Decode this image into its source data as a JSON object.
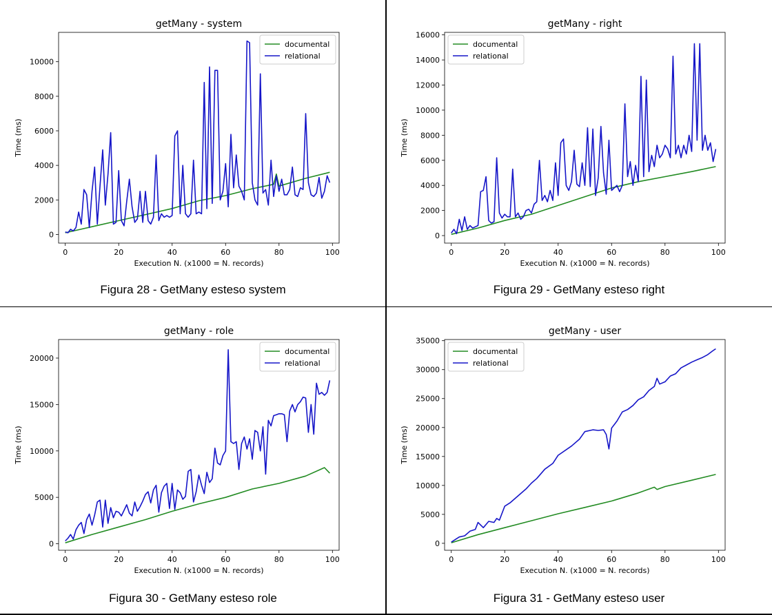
{
  "captions": {
    "p0": "Figura 28 - GetMany esteso system",
    "p1": "Figura 29 - GetMany esteso right",
    "p2": "Figura 30 - GetMany esteso role",
    "p3": "Figura 31 - GetMany esteso user"
  },
  "colors": {
    "documental": "#228b22",
    "relational": "#1515c8"
  },
  "chart_data": [
    {
      "type": "line",
      "title": "getMany - system",
      "xlabel": "Execution N. (x1000 = N. records)",
      "ylabel": "Time (ms)",
      "xlim": [
        -2.5,
        102.5
      ],
      "ylim": [
        -500,
        11700
      ],
      "xticks": [
        0,
        20,
        40,
        60,
        80,
        100
      ],
      "yticks": [
        0,
        2000,
        4000,
        6000,
        8000,
        10000
      ],
      "legend_position": "top-right",
      "series": [
        {
          "name": "documental",
          "key": "documental",
          "x": [
            0,
            10,
            20,
            30,
            40,
            50,
            60,
            70,
            78,
            79,
            80,
            90,
            99
          ],
          "values": [
            100,
            450,
            800,
            1150,
            1500,
            1950,
            2250,
            2650,
            2900,
            3500,
            2800,
            3250,
            3600
          ]
        },
        {
          "name": "relational",
          "key": "relational",
          "x": [
            0,
            1,
            2,
            3,
            4,
            5,
            6,
            7,
            8,
            9,
            10,
            11,
            12,
            13,
            14,
            15,
            16,
            17,
            18,
            19,
            20,
            21,
            22,
            23,
            24,
            25,
            26,
            27,
            28,
            29,
            30,
            31,
            32,
            33,
            34,
            35,
            36,
            37,
            38,
            39,
            40,
            41,
            42,
            43,
            44,
            45,
            46,
            47,
            48,
            49,
            50,
            51,
            52,
            53,
            54,
            55,
            56,
            57,
            58,
            59,
            60,
            61,
            62,
            63,
            64,
            65,
            66,
            67,
            68,
            69,
            70,
            71,
            72,
            73,
            74,
            75,
            76,
            77,
            78,
            79,
            80,
            81,
            82,
            83,
            84,
            85,
            86,
            87,
            88,
            89,
            90,
            91,
            92,
            93,
            94,
            95,
            96,
            97,
            98,
            99
          ],
          "values": [
            150,
            100,
            300,
            200,
            400,
            1300,
            600,
            2600,
            2300,
            400,
            2500,
            3900,
            600,
            2800,
            4900,
            1700,
            3500,
            5900,
            600,
            700,
            3700,
            800,
            500,
            1900,
            3200,
            1600,
            700,
            900,
            2500,
            700,
            2500,
            800,
            600,
            1000,
            4600,
            800,
            1200,
            1000,
            1100,
            1000,
            1100,
            5700,
            6000,
            1200,
            4000,
            1200,
            1000,
            1200,
            4300,
            1200,
            1300,
            1200,
            8800,
            1500,
            9700,
            1800,
            9500,
            9500,
            2000,
            2500,
            4100,
            1600,
            5800,
            2700,
            4600,
            2800,
            2500,
            2000,
            11200,
            11100,
            3000,
            2000,
            1700,
            9300,
            2400,
            2600,
            1700,
            4300,
            2200,
            3400,
            2500,
            3200,
            2300,
            2300,
            2600,
            3900,
            2300,
            2200,
            2700,
            2600,
            7000,
            3000,
            2300,
            2200,
            2400,
            3300,
            2100,
            2500,
            3400,
            3000
          ]
        }
      ]
    },
    {
      "type": "line",
      "title": "getMany - right",
      "xlabel": "Execution N. (x1000 = N. records)",
      "ylabel": "Time (ms)",
      "xlim": [
        -2.5,
        102.5
      ],
      "ylim": [
        -600,
        16200
      ],
      "xticks": [
        0,
        20,
        40,
        60,
        80,
        100
      ],
      "yticks": [
        0,
        2000,
        4000,
        6000,
        8000,
        10000,
        12000,
        14000,
        16000
      ],
      "legend_position": "top-left",
      "series": [
        {
          "name": "documental",
          "key": "documental",
          "x": [
            0,
            10,
            20,
            30,
            40,
            50,
            60,
            70,
            80,
            90,
            99
          ],
          "values": [
            100,
            600,
            1200,
            1700,
            2400,
            3100,
            3800,
            4300,
            4700,
            5100,
            5500
          ]
        },
        {
          "name": "relational",
          "key": "relational",
          "x": [
            0,
            1,
            2,
            3,
            4,
            5,
            6,
            7,
            8,
            9,
            10,
            11,
            12,
            13,
            14,
            15,
            16,
            17,
            18,
            19,
            20,
            21,
            22,
            23,
            24,
            25,
            26,
            27,
            28,
            29,
            30,
            31,
            32,
            33,
            34,
            35,
            36,
            37,
            38,
            39,
            40,
            41,
            42,
            43,
            44,
            45,
            46,
            47,
            48,
            49,
            50,
            51,
            52,
            53,
            54,
            55,
            56,
            57,
            58,
            59,
            60,
            61,
            62,
            63,
            64,
            65,
            66,
            67,
            68,
            69,
            70,
            71,
            72,
            73,
            74,
            75,
            76,
            77,
            78,
            79,
            80,
            81,
            82,
            83,
            84,
            85,
            86,
            87,
            88,
            89,
            90,
            91,
            92,
            93,
            94,
            95,
            96,
            97,
            98,
            99
          ],
          "values": [
            200,
            500,
            150,
            1300,
            400,
            1500,
            500,
            800,
            600,
            700,
            800,
            3500,
            3600,
            4700,
            1200,
            1000,
            1100,
            6200,
            1800,
            1400,
            1700,
            1500,
            1500,
            5300,
            1500,
            1800,
            1300,
            1500,
            2000,
            2100,
            1800,
            2500,
            2700,
            6000,
            2800,
            3200,
            2700,
            3600,
            2800,
            5800,
            3200,
            7400,
            7700,
            4000,
            3600,
            4300,
            6800,
            4100,
            3900,
            5800,
            4000,
            8600,
            3900,
            8500,
            3200,
            4600,
            8700,
            5000,
            3300,
            7600,
            3600,
            3800,
            4000,
            3500,
            4000,
            10500,
            4700,
            5900,
            4000,
            5600,
            4300,
            12700,
            4700,
            12400,
            5100,
            6400,
            5500,
            7200,
            6200,
            6500,
            7200,
            6900,
            6200,
            14300,
            6500,
            7200,
            6200,
            7200,
            6500,
            8000,
            6700,
            15300,
            7600,
            15300,
            6800,
            8000,
            6800,
            7400,
            5900,
            6900
          ]
        }
      ]
    },
    {
      "type": "line",
      "title": "getMany - role",
      "xlabel": "Execution N. (x1000 = N. records)",
      "ylabel": "Time (ms)",
      "xlim": [
        -2.5,
        102.5
      ],
      "ylim": [
        -700,
        22000
      ],
      "xticks": [
        0,
        20,
        40,
        60,
        80,
        100
      ],
      "yticks": [
        0,
        5000,
        10000,
        15000,
        20000
      ],
      "legend_position": "top-right",
      "series": [
        {
          "name": "documental",
          "key": "documental",
          "x": [
            0,
            10,
            20,
            30,
            40,
            50,
            60,
            70,
            80,
            90,
            97,
            99
          ],
          "values": [
            100,
            1000,
            1800,
            2600,
            3500,
            4300,
            5000,
            5900,
            6500,
            7300,
            8200,
            7600
          ]
        },
        {
          "name": "relational",
          "key": "relational",
          "x": [
            0,
            1,
            2,
            3,
            4,
            5,
            6,
            7,
            8,
            9,
            10,
            11,
            12,
            13,
            14,
            15,
            16,
            17,
            18,
            19,
            20,
            21,
            22,
            23,
            24,
            25,
            26,
            27,
            28,
            29,
            30,
            31,
            32,
            33,
            34,
            35,
            36,
            37,
            38,
            39,
            40,
            41,
            42,
            43,
            44,
            45,
            46,
            47,
            48,
            49,
            50,
            51,
            52,
            53,
            54,
            55,
            56,
            57,
            58,
            59,
            60,
            61,
            62,
            63,
            64,
            65,
            66,
            67,
            68,
            69,
            70,
            71,
            72,
            73,
            74,
            75,
            76,
            77,
            78,
            79,
            80,
            81,
            82,
            83,
            84,
            85,
            86,
            87,
            88,
            89,
            90,
            91,
            92,
            93,
            94,
            95,
            96,
            97,
            98,
            99
          ],
          "values": [
            300,
            600,
            1000,
            500,
            1500,
            2000,
            2300,
            1100,
            2600,
            3200,
            2000,
            3100,
            4500,
            4700,
            1800,
            4700,
            2200,
            3900,
            2800,
            3500,
            3400,
            3000,
            3600,
            4200,
            3300,
            3000,
            4500,
            3500,
            4000,
            4600,
            5300,
            5600,
            4400,
            5800,
            6300,
            3400,
            5500,
            6200,
            6500,
            3800,
            6500,
            3700,
            5800,
            5500,
            4800,
            5100,
            7800,
            8000,
            4500,
            5600,
            7400,
            6300,
            5400,
            7700,
            6600,
            7000,
            10300,
            8700,
            8500,
            9500,
            10000,
            20900,
            11000,
            10800,
            11000,
            8000,
            10800,
            11500,
            10200,
            11300,
            9100,
            12200,
            12000,
            10000,
            12600,
            7500,
            13300,
            12700,
            13800,
            13900,
            14000,
            14000,
            13900,
            11000,
            14300,
            15000,
            14200,
            15000,
            15300,
            15800,
            15700,
            12000,
            15000,
            11800,
            17300,
            16100,
            16300,
            16000,
            16300,
            17600
          ]
        }
      ]
    },
    {
      "type": "line",
      "title": "getMany - user",
      "xlabel": "Execution N. (x1000 = N. records)",
      "ylabel": "Time (ms)",
      "xlim": [
        -2.5,
        102.5
      ],
      "ylim": [
        -1200,
        35200
      ],
      "xticks": [
        0,
        20,
        40,
        60,
        80,
        100
      ],
      "yticks": [
        0,
        5000,
        10000,
        15000,
        20000,
        25000,
        30000,
        35000
      ],
      "legend_position": "top-left",
      "series": [
        {
          "name": "documental",
          "key": "documental",
          "x": [
            0,
            10,
            20,
            30,
            40,
            50,
            60,
            70,
            76,
            77,
            80,
            90,
            99
          ],
          "values": [
            100,
            1500,
            2700,
            3900,
            5100,
            6200,
            7300,
            8700,
            9700,
            9300,
            9800,
            10900,
            11900
          ]
        },
        {
          "name": "relational",
          "key": "relational",
          "x": [
            0,
            3,
            5,
            7,
            9,
            10,
            12,
            14,
            16,
            17,
            18,
            20,
            22,
            25,
            28,
            30,
            32,
            35,
            38,
            40,
            45,
            48,
            50,
            53,
            55,
            57,
            58,
            59,
            60,
            61,
            62,
            64,
            66,
            68,
            70,
            72,
            74,
            76,
            77,
            78,
            80,
            82,
            84,
            86,
            88,
            90,
            92,
            94,
            96,
            98,
            99
          ],
          "values": [
            200,
            1100,
            1300,
            2100,
            2400,
            3600,
            2700,
            3800,
            3600,
            4300,
            4000,
            6400,
            7000,
            8200,
            9400,
            10400,
            11200,
            12800,
            13800,
            15200,
            16800,
            18000,
            19300,
            19600,
            19500,
            19600,
            18800,
            16300,
            19900,
            20500,
            21100,
            22700,
            23100,
            23800,
            24800,
            25300,
            26400,
            27100,
            28500,
            27500,
            27900,
            28900,
            29300,
            30300,
            30800,
            31300,
            31700,
            32100,
            32600,
            33300,
            33600
          ]
        }
      ]
    }
  ]
}
